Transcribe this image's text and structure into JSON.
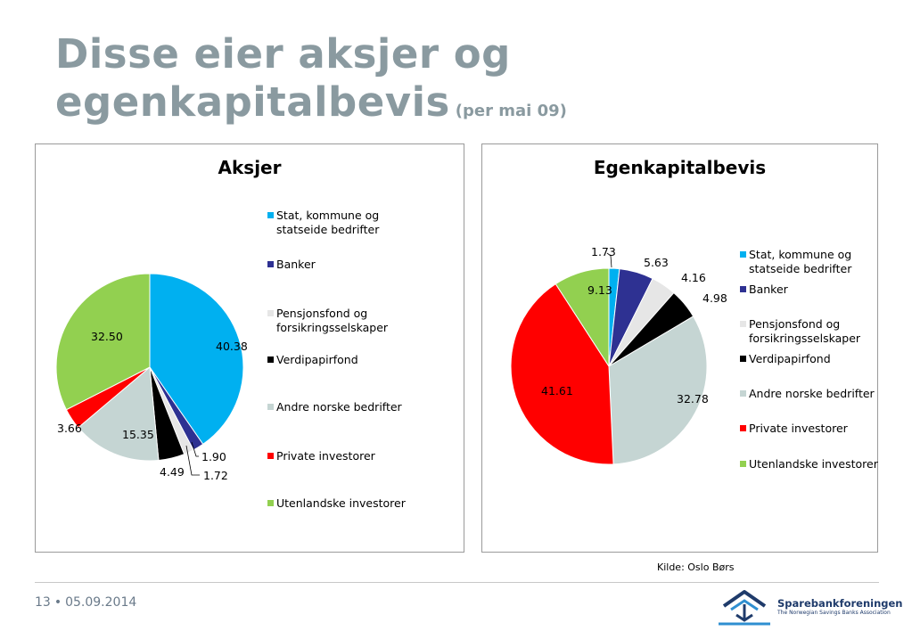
{
  "slide": {
    "title": "Disse eier aksjer og egenkapitalbevis",
    "title_line1": "Disse eier aksjer og",
    "title_line2": "egenkapitalbevis",
    "subtitle": "(per mai 09)",
    "source": "Kilde: Oslo Børs",
    "page_number": "13",
    "date": "05.09.2014",
    "logo_name": "Sparebankforeningen",
    "logo_tagline": "The Norwegian Savings Banks Association",
    "colors": {
      "title": "#8a9aa0",
      "stat": "#00b0f0",
      "banker": "#2e3192",
      "pensjon": "#e6e6e6",
      "verdipapir": "#000000",
      "andre": "#c5d5d3",
      "private": "#ff0000",
      "utenlandske": "#92d050"
    }
  },
  "chart_data": [
    {
      "type": "pie",
      "title": "Aksjer",
      "categories": [
        "Stat, kommune og statseide bedrifter",
        "Banker",
        "Pensjonsfond og forsikringsselskaper",
        "Verdipapirfond",
        "Andre norske bedrifter",
        "Private investorer",
        "Utenlandske investorer"
      ],
      "values": [
        40.38,
        1.9,
        1.72,
        4.49,
        15.35,
        3.66,
        32.5
      ],
      "value_labels": [
        "40.38",
        "1.90",
        "1.72",
        "4.49",
        "15.35",
        "3.66",
        "32.50"
      ],
      "colors": [
        "#00b0f0",
        "#2e3192",
        "#e6e6e6",
        "#000000",
        "#c5d5d3",
        "#ff0000",
        "#92d050"
      ],
      "legend_position": "right"
    },
    {
      "type": "pie",
      "title": "Egenkapitalbevis",
      "categories": [
        "Stat, kommune og statseide bedrifter",
        "Banker",
        "Pensjonsfond og forsikringsselskaper",
        "Verdipapirfond",
        "Andre norske bedrifter",
        "Private investorer",
        "Utenlandske investorer"
      ],
      "values": [
        1.73,
        5.63,
        4.16,
        4.98,
        32.78,
        41.61,
        9.13
      ],
      "value_labels": [
        "1.73",
        "5.63",
        "4.16",
        "4.98",
        "32.78",
        "41.61",
        "9.13"
      ],
      "colors": [
        "#00b0f0",
        "#2e3192",
        "#e6e6e6",
        "#000000",
        "#c5d5d3",
        "#ff0000",
        "#92d050"
      ],
      "legend_position": "right"
    }
  ]
}
